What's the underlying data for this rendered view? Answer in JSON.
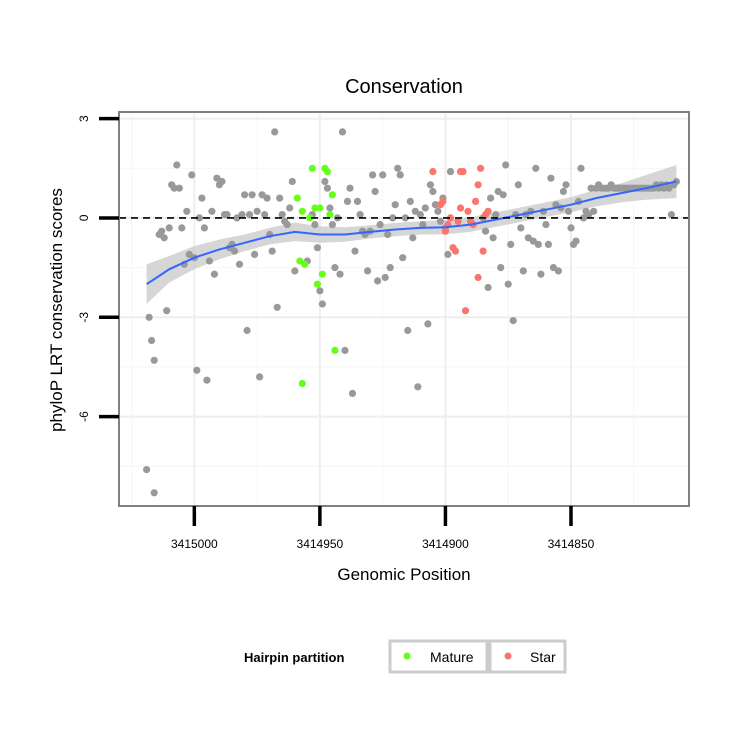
{
  "chart_data": {
    "type": "scatter",
    "title": "Conservation",
    "xlabel": "Genomic Position",
    "ylabel": "phyloP LRT conservation scores",
    "x_reversed": true,
    "xlim": [
      3415030,
      3414803
    ],
    "ylim": [
      -8.7,
      3.2
    ],
    "x_ticks": [
      3415000,
      3414950,
      3414900,
      3414850
    ],
    "x_tick_labels": [
      "3415000",
      "3414950",
      "3414900",
      "3414850"
    ],
    "y_ticks": [
      3,
      0,
      -3,
      -6
    ],
    "y_tick_labels": [
      "3",
      "0",
      "-3",
      "-6"
    ],
    "grid": true,
    "reference_line": {
      "y": 0,
      "style": "dashed",
      "color": "#000000"
    },
    "legend": {
      "title": "Hairpin partition",
      "position": "bottom",
      "entries": [
        {
          "label": "Mature",
          "color": "#66ff1a"
        },
        {
          "label": "Star",
          "color": "#f8766d"
        }
      ]
    },
    "colors": {
      "other": "#999999",
      "mature": "#66ff1a",
      "star": "#f8766d",
      "smooth": "#3366ff",
      "band": "#cccccc"
    },
    "series": [
      {
        "name": "",
        "group": "other",
        "points": [
          [
            3415019,
            -7.6
          ],
          [
            3415016,
            -8.3
          ],
          [
            3415018,
            -3.0
          ],
          [
            3415017,
            -3.7
          ],
          [
            3415016,
            -4.3
          ],
          [
            3415014,
            -0.5
          ],
          [
            3415013,
            -0.4
          ],
          [
            3415012,
            -0.6
          ],
          [
            3415011,
            -2.8
          ],
          [
            3415010,
            -0.3
          ],
          [
            3415009,
            1.0
          ],
          [
            3415008,
            0.9
          ],
          [
            3415007,
            1.6
          ],
          [
            3415006,
            0.9
          ],
          [
            3415005,
            -0.3
          ],
          [
            3415004,
            -1.4
          ],
          [
            3415003,
            0.2
          ],
          [
            3415002,
            -1.1
          ],
          [
            3415001,
            1.3
          ],
          [
            3415000,
            -1.2
          ],
          [
            3414999,
            -4.6
          ],
          [
            3414998,
            0.0
          ],
          [
            3414997,
            0.6
          ],
          [
            3414996,
            -0.3
          ],
          [
            3414995,
            -4.9
          ],
          [
            3414994,
            -1.3
          ],
          [
            3414993,
            0.2
          ],
          [
            3414992,
            -1.7
          ],
          [
            3414991,
            1.2
          ],
          [
            3414990,
            1.0
          ],
          [
            3414989,
            1.1
          ],
          [
            3414988,
            0.1
          ],
          [
            3414987,
            0.1
          ],
          [
            3414986,
            -0.9
          ],
          [
            3414985,
            -0.8
          ],
          [
            3414984,
            -1.0
          ],
          [
            3414983,
            0.0
          ],
          [
            3414982,
            -1.4
          ],
          [
            3414981,
            0.1
          ],
          [
            3414980,
            0.7
          ],
          [
            3414979,
            -3.4
          ],
          [
            3414978,
            0.1
          ],
          [
            3414977,
            0.7
          ],
          [
            3414976,
            -1.1
          ],
          [
            3414975,
            0.2
          ],
          [
            3414974,
            -4.8
          ],
          [
            3414973,
            0.7
          ],
          [
            3414972,
            0.1
          ],
          [
            3414971,
            0.6
          ],
          [
            3414970,
            -0.5
          ],
          [
            3414969,
            -1.0
          ],
          [
            3414968,
            2.6
          ],
          [
            3414967,
            -2.7
          ],
          [
            3414966,
            0.6
          ],
          [
            3414965,
            0.1
          ],
          [
            3414964,
            -0.1
          ],
          [
            3414963,
            -0.2
          ],
          [
            3414962,
            0.3
          ],
          [
            3414961,
            1.1
          ],
          [
            3414960,
            -1.6
          ],
          [
            3414955,
            -1.3
          ],
          [
            3414953,
            0.1
          ],
          [
            3414952,
            -0.2
          ],
          [
            3414951,
            -0.9
          ],
          [
            3414950,
            -2.2
          ],
          [
            3414949,
            -2.6
          ],
          [
            3414948,
            1.1
          ],
          [
            3414947,
            0.9
          ],
          [
            3414946,
            0.3
          ],
          [
            3414945,
            -0.2
          ],
          [
            3414944,
            -1.5
          ],
          [
            3414943,
            0.0
          ],
          [
            3414942,
            -1.7
          ],
          [
            3414941,
            2.6
          ],
          [
            3414940,
            -4.0
          ],
          [
            3414939,
            0.5
          ],
          [
            3414938,
            0.9
          ],
          [
            3414937,
            -5.3
          ],
          [
            3414936,
            -1.0
          ],
          [
            3414935,
            0.5
          ],
          [
            3414934,
            0.1
          ],
          [
            3414933,
            -0.4
          ],
          [
            3414932,
            -0.5
          ],
          [
            3414931,
            -1.6
          ],
          [
            3414930,
            -0.4
          ],
          [
            3414929,
            1.3
          ],
          [
            3414928,
            0.8
          ],
          [
            3414927,
            -1.9
          ],
          [
            3414926,
            -0.2
          ],
          [
            3414925,
            1.3
          ],
          [
            3414924,
            -1.8
          ],
          [
            3414923,
            -0.5
          ],
          [
            3414922,
            -1.5
          ],
          [
            3414921,
            0.0
          ],
          [
            3414920,
            0.4
          ],
          [
            3414919,
            1.5
          ],
          [
            3414918,
            1.3
          ],
          [
            3414917,
            -1.2
          ],
          [
            3414916,
            0.0
          ],
          [
            3414915,
            -3.4
          ],
          [
            3414914,
            0.5
          ],
          [
            3414913,
            -0.6
          ],
          [
            3414912,
            0.2
          ],
          [
            3414911,
            -5.1
          ],
          [
            3414910,
            0.1
          ],
          [
            3414909,
            -0.2
          ],
          [
            3414908,
            0.3
          ],
          [
            3414907,
            -3.2
          ],
          [
            3414906,
            1.0
          ],
          [
            3414905,
            0.8
          ],
          [
            3414904,
            0.4
          ],
          [
            3414903,
            0.2
          ],
          [
            3414902,
            -0.1
          ],
          [
            3414901,
            0.6
          ],
          [
            3414900,
            -0.3
          ],
          [
            3414899,
            -1.1
          ],
          [
            3414898,
            1.4
          ],
          [
            3414885,
            0.0
          ],
          [
            3414884,
            -0.4
          ],
          [
            3414883,
            -2.1
          ],
          [
            3414882,
            0.6
          ],
          [
            3414881,
            -0.6
          ],
          [
            3414880,
            0.1
          ],
          [
            3414879,
            0.8
          ],
          [
            3414878,
            -1.5
          ],
          [
            3414877,
            0.7
          ],
          [
            3414876,
            1.6
          ],
          [
            3414875,
            -2.0
          ],
          [
            3414874,
            -0.8
          ],
          [
            3414873,
            -3.1
          ],
          [
            3414872,
            0.1
          ],
          [
            3414871,
            1.0
          ],
          [
            3414870,
            -0.3
          ],
          [
            3414869,
            -1.6
          ],
          [
            3414868,
            0.1
          ],
          [
            3414867,
            -0.6
          ],
          [
            3414866,
            0.2
          ],
          [
            3414865,
            -0.7
          ],
          [
            3414864,
            1.5
          ],
          [
            3414863,
            -0.8
          ],
          [
            3414862,
            -1.7
          ],
          [
            3414861,
            0.2
          ],
          [
            3414860,
            -0.2
          ],
          [
            3414859,
            -0.8
          ],
          [
            3414858,
            1.2
          ],
          [
            3414857,
            -1.5
          ],
          [
            3414856,
            0.4
          ],
          [
            3414855,
            -1.6
          ],
          [
            3414854,
            0.3
          ],
          [
            3414853,
            0.8
          ],
          [
            3414852,
            1.0
          ],
          [
            3414851,
            0.2
          ],
          [
            3414850,
            -0.3
          ],
          [
            3414849,
            -0.8
          ],
          [
            3414848,
            -0.7
          ],
          [
            3414847,
            0.5
          ],
          [
            3414846,
            1.5
          ],
          [
            3414845,
            0.0
          ],
          [
            3414844,
            0.2
          ],
          [
            3414843,
            0.1
          ],
          [
            3414842,
            0.9
          ],
          [
            3414841,
            0.2
          ],
          [
            3414840,
            0.9
          ],
          [
            3414839,
            1.0
          ],
          [
            3414838,
            0.9
          ],
          [
            3414837,
            0.9
          ],
          [
            3414836,
            0.9
          ],
          [
            3414835,
            0.9
          ],
          [
            3414834,
            1.0
          ],
          [
            3414833,
            0.9
          ],
          [
            3414832,
            0.9
          ],
          [
            3414831,
            0.9
          ],
          [
            3414830,
            0.9
          ],
          [
            3414829,
            0.9
          ],
          [
            3414828,
            0.9
          ],
          [
            3414827,
            0.9
          ],
          [
            3414826,
            0.9
          ],
          [
            3414825,
            0.9
          ],
          [
            3414824,
            0.9
          ],
          [
            3414823,
            0.9
          ],
          [
            3414822,
            0.9
          ],
          [
            3414821,
            0.9
          ],
          [
            3414820,
            0.9
          ],
          [
            3414819,
            0.9
          ],
          [
            3414818,
            0.9
          ],
          [
            3414817,
            0.9
          ],
          [
            3414816,
            1.0
          ],
          [
            3414815,
            0.9
          ],
          [
            3414814,
            1.0
          ],
          [
            3414813,
            0.9
          ],
          [
            3414812,
            1.0
          ],
          [
            3414811,
            0.9
          ],
          [
            3414810,
            0.1
          ],
          [
            3414809,
            1.0
          ],
          [
            3414808,
            1.1
          ]
        ]
      },
      {
        "name": "Mature",
        "group": "mature",
        "points": [
          [
            3414959,
            0.6
          ],
          [
            3414958,
            -1.3
          ],
          [
            3414957,
            0.2
          ],
          [
            3414956,
            -1.4
          ],
          [
            3414957,
            -5.0
          ],
          [
            3414954,
            0.0
          ],
          [
            3414953,
            1.5
          ],
          [
            3414952,
            0.3
          ],
          [
            3414951,
            -2.0
          ],
          [
            3414950,
            0.3
          ],
          [
            3414949,
            -1.7
          ],
          [
            3414948,
            1.5
          ],
          [
            3414947,
            1.4
          ],
          [
            3414946,
            0.1
          ],
          [
            3414944,
            -4.0
          ],
          [
            3414945,
            0.7
          ]
        ]
      },
      {
        "name": "Star",
        "group": "star",
        "points": [
          [
            3414902,
            0.4
          ],
          [
            3414901,
            0.5
          ],
          [
            3414900,
            -0.4
          ],
          [
            3414899,
            -0.2
          ],
          [
            3414898,
            0.0
          ],
          [
            3414897,
            -0.9
          ],
          [
            3414896,
            -1.0
          ],
          [
            3414895,
            -0.1
          ],
          [
            3414894,
            0.3
          ],
          [
            3414893,
            1.4
          ],
          [
            3414892,
            -2.8
          ],
          [
            3414891,
            0.2
          ],
          [
            3414890,
            -0.1
          ],
          [
            3414889,
            -0.2
          ],
          [
            3414888,
            0.5
          ],
          [
            3414887,
            -1.8
          ],
          [
            3414886,
            1.5
          ],
          [
            3414885,
            -1.0
          ],
          [
            3414884,
            0.1
          ],
          [
            3414883,
            0.2
          ],
          [
            3414894,
            1.4
          ],
          [
            3414905,
            1.4
          ],
          [
            3414887,
            1.0
          ]
        ]
      }
    ],
    "smooth": {
      "method": "loess",
      "x": [
        3415019,
        3415010,
        3415000,
        3414990,
        3414980,
        3414970,
        3414960,
        3414950,
        3414940,
        3414930,
        3414920,
        3414910,
        3414900,
        3414890,
        3414880,
        3414870,
        3414860,
        3414850,
        3414840,
        3414830,
        3414820,
        3414808
      ],
      "y": [
        -2.0,
        -1.55,
        -1.2,
        -0.95,
        -0.75,
        -0.55,
        -0.42,
        -0.5,
        -0.5,
        -0.42,
        -0.35,
        -0.3,
        -0.28,
        -0.2,
        -0.05,
        0.1,
        0.25,
        0.4,
        0.6,
        0.75,
        0.9,
        1.1
      ],
      "se_low": [
        -2.6,
        -1.95,
        -1.55,
        -1.25,
        -1.0,
        -0.8,
        -0.7,
        -0.75,
        -0.72,
        -0.62,
        -0.55,
        -0.5,
        -0.5,
        -0.42,
        -0.27,
        -0.12,
        0.03,
        0.17,
        0.35,
        0.47,
        0.55,
        0.6
      ],
      "se_high": [
        -1.4,
        -1.15,
        -0.85,
        -0.65,
        -0.5,
        -0.3,
        -0.14,
        -0.25,
        -0.28,
        -0.22,
        -0.15,
        -0.1,
        -0.06,
        0.02,
        0.17,
        0.32,
        0.47,
        0.63,
        0.85,
        1.05,
        1.3,
        1.6
      ]
    }
  }
}
